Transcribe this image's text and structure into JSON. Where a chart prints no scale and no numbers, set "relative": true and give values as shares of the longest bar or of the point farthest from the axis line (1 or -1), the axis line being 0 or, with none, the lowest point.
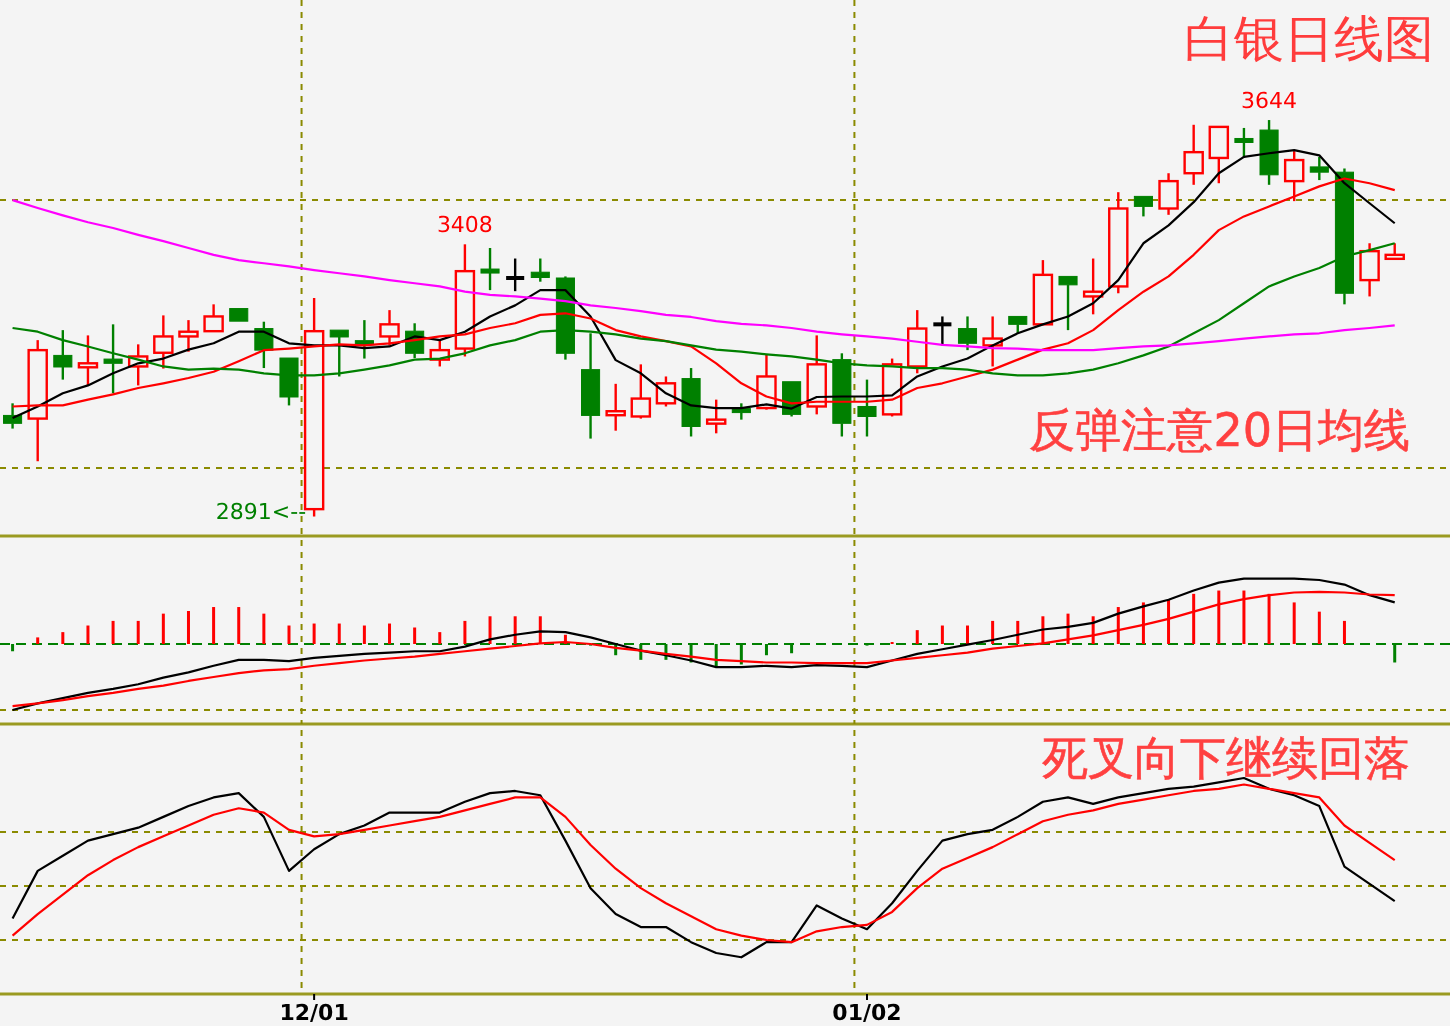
{
  "chart_data": [
    {
      "type": "candlestick",
      "title": "白银日线图",
      "tick_labels": false,
      "grid": true,
      "categories": [
        null,
        null,
        null,
        null,
        null,
        null,
        null,
        null,
        null,
        null,
        null,
        null,
        null,
        null,
        null,
        null,
        null,
        null,
        null,
        null,
        null,
        null,
        null,
        null,
        null,
        null,
        null,
        null,
        null,
        null,
        null,
        null,
        null,
        null,
        null,
        null,
        null,
        null,
        null,
        null,
        null,
        null,
        null,
        null,
        null,
        null,
        null,
        null,
        null,
        null,
        null,
        null,
        null,
        null,
        null,
        null
      ],
      "ylim": [
        2854,
        3872
      ],
      "yticks": [
        {
          "value": 3492,
          "label": null
        },
        {
          "value": 2983,
          "label": null
        }
      ],
      "ohlc": [
        [
          3083,
          3106,
          3058,
          3068
        ],
        [
          3077,
          3226,
          2996,
          3207
        ],
        [
          3197,
          3245,
          3151,
          3175
        ],
        [
          3180,
          3235,
          3140,
          3182
        ],
        [
          3190,
          3256,
          3125,
          3182
        ],
        [
          3176,
          3218,
          3140,
          3195
        ],
        [
          3202,
          3273,
          3172,
          3233
        ],
        [
          3233,
          3264,
          3204,
          3242
        ],
        [
          3243,
          3294,
          3243,
          3271
        ],
        [
          3286,
          3286,
          3262,
          3262
        ],
        [
          3248,
          3261,
          3173,
          3207
        ],
        [
          3192,
          3192,
          3102,
          3118
        ],
        [
          2905,
          3306,
          2891,
          3243
        ],
        [
          3245,
          3245,
          3157,
          3232
        ],
        [
          3225,
          3264,
          3191,
          3223
        ],
        [
          3233,
          3283,
          3216,
          3256
        ],
        [
          3243,
          3258,
          3192,
          3201
        ],
        [
          3189,
          3226,
          3176,
          3207
        ],
        [
          3210,
          3408,
          3195,
          3357
        ],
        [
          3361,
          3401,
          3321,
          3358
        ],
        [
          3344,
          3381,
          3319,
          3344
        ],
        [
          3355,
          3381,
          3337,
          3345
        ],
        [
          3344,
          3347,
          3189,
          3201
        ],
        [
          3170,
          3239,
          3039,
          3083
        ],
        [
          3087,
          3143,
          3054,
          3091
        ],
        [
          3081,
          3180,
          3077,
          3115
        ],
        [
          3106,
          3157,
          3100,
          3144
        ],
        [
          3153,
          3173,
          3043,
          3062
        ],
        [
          3072,
          3113,
          3049,
          3075
        ],
        [
          3096,
          3106,
          3075,
          3090
        ],
        [
          3097,
          3199,
          3094,
          3157
        ],
        [
          3147,
          3147,
          3081,
          3085
        ],
        [
          3100,
          3235,
          3085,
          3180
        ],
        [
          3189,
          3201,
          3043,
          3068
        ],
        [
          3100,
          3151,
          3043,
          3081
        ],
        [
          3085,
          3191,
          3081,
          3180
        ],
        [
          3176,
          3283,
          3163,
          3248
        ],
        [
          3256,
          3271,
          3216,
          3256
        ],
        [
          3248,
          3271,
          3207,
          3220
        ],
        [
          3216,
          3271,
          3176,
          3229
        ],
        [
          3271,
          3271,
          3239,
          3256
        ],
        [
          3256,
          3378,
          3256,
          3350
        ],
        [
          3347,
          3347,
          3245,
          3331
        ],
        [
          3309,
          3381,
          3275,
          3318
        ],
        [
          3328,
          3507,
          3315,
          3476
        ],
        [
          3499,
          3499,
          3461,
          3480
        ],
        [
          3476,
          3543,
          3464,
          3528
        ],
        [
          3543,
          3635,
          3521,
          3583
        ],
        [
          3572,
          3631,
          3524,
          3631
        ],
        [
          3609,
          3629,
          3572,
          3605
        ],
        [
          3625,
          3644,
          3521,
          3540
        ],
        [
          3528,
          3585,
          3490,
          3568
        ],
        [
          3555,
          3574,
          3530,
          3545
        ],
        [
          3545,
          3552,
          3294,
          3315
        ],
        [
          3340,
          3410,
          3309,
          3395
        ],
        [
          3381,
          3410,
          3381,
          3388
        ]
      ],
      "series": [
        {
          "type": "line",
          "color": "#000000",
          "values": [
            3078,
            3100,
            3125,
            3140,
            3163,
            3182,
            3191,
            3208,
            3220,
            3242,
            3242,
            3220,
            3216,
            3216,
            3211,
            3214,
            3233,
            3226,
            3242,
            3271,
            3292,
            3321,
            3321,
            3271,
            3188,
            3163,
            3125,
            3102,
            3097,
            3097,
            3104,
            3096,
            3118,
            3119,
            3119,
            3121,
            3157,
            3176,
            3191,
            3216,
            3239,
            3256,
            3271,
            3296,
            3340,
            3410,
            3444,
            3488,
            3543,
            3574,
            3581,
            3587,
            3577,
            3524,
            3486,
            3448
          ]
        },
        {
          "type": "line",
          "color": "#ff0000",
          "values": [
            3100,
            3102,
            3102,
            3113,
            3123,
            3135,
            3144,
            3154,
            3166,
            3186,
            3207,
            3210,
            3214,
            3218,
            3216,
            3220,
            3226,
            3233,
            3237,
            3249,
            3258,
            3274,
            3277,
            3267,
            3245,
            3233,
            3224,
            3214,
            3182,
            3144,
            3119,
            3106,
            3109,
            3109,
            3109,
            3113,
            3135,
            3144,
            3157,
            3170,
            3189,
            3208,
            3220,
            3245,
            3283,
            3318,
            3347,
            3388,
            3435,
            3461,
            3480,
            3499,
            3518,
            3533,
            3524,
            3511
          ]
        },
        {
          "type": "line",
          "color": "#008000",
          "values": [
            3249,
            3242,
            3226,
            3214,
            3201,
            3189,
            3176,
            3170,
            3172,
            3170,
            3163,
            3159,
            3159,
            3163,
            3170,
            3178,
            3189,
            3191,
            3201,
            3216,
            3226,
            3242,
            3245,
            3242,
            3237,
            3229,
            3224,
            3216,
            3208,
            3204,
            3199,
            3195,
            3189,
            3182,
            3178,
            3176,
            3173,
            3173,
            3170,
            3163,
            3159,
            3159,
            3163,
            3170,
            3182,
            3197,
            3214,
            3239,
            3264,
            3296,
            3328,
            3347,
            3363,
            3385,
            3397,
            3410
          ]
        },
        {
          "type": "line",
          "color": "#ff00ff",
          "values": [
            3492,
            3477,
            3463,
            3450,
            3439,
            3426,
            3414,
            3401,
            3388,
            3378,
            3372,
            3366,
            3359,
            3353,
            3347,
            3340,
            3334,
            3328,
            3318,
            3312,
            3309,
            3305,
            3300,
            3292,
            3287,
            3281,
            3274,
            3270,
            3262,
            3257,
            3254,
            3249,
            3242,
            3237,
            3233,
            3229,
            3223,
            3217,
            3214,
            3211,
            3210,
            3207,
            3207,
            3207,
            3211,
            3214,
            3216,
            3220,
            3224,
            3229,
            3233,
            3237,
            3239,
            3245,
            3249,
            3254
          ]
        }
      ],
      "annotations": [
        {
          "text": "3408",
          "y": 3408
        },
        {
          "text": "3644",
          "y": 3644
        },
        "2891<--",
        "反弹注意20日均线"
      ]
    },
    {
      "type": "bar",
      "relative": true,
      "tick_labels": false,
      "grid": true,
      "ref_lines": [
        {
          "axis": "y",
          "value": 0,
          "color": "#008000",
          "line_style": "dashed"
        }
      ],
      "categories": [
        null,
        null,
        null,
        null,
        null,
        null,
        null,
        null,
        null,
        null,
        null,
        null,
        null,
        null,
        null,
        null,
        null,
        null,
        null,
        null,
        null,
        null,
        null,
        null,
        null,
        null,
        null,
        null,
        null,
        null,
        null,
        null,
        null,
        null,
        null,
        null,
        null,
        null,
        null,
        null,
        null,
        null,
        null,
        null,
        null,
        null,
        null,
        null,
        null,
        null,
        null,
        null,
        null,
        null,
        null,
        null
      ],
      "series": [
        {
          "type": "bar",
          "values": [
            -0.11,
            0.1,
            0.18,
            0.28,
            0.35,
            0.35,
            0.46,
            0.5,
            0.56,
            0.56,
            0.46,
            0.28,
            0.31,
            0.31,
            0.28,
            0.31,
            0.25,
            0.18,
            0.35,
            0.42,
            0.42,
            0.42,
            0.14,
            0,
            -0.17,
            -0.24,
            -0.24,
            -0.28,
            -0.35,
            -0.31,
            -0.17,
            -0.14,
            null,
            null,
            0,
            0.03,
            0.21,
            0.28,
            0.28,
            0.35,
            0.35,
            0.42,
            0.46,
            0.42,
            0.56,
            0.63,
            0.67,
            0.76,
            0.81,
            0.81,
            0.76,
            0.63,
            0.49,
            0.35,
            null,
            -0.28
          ],
          "colors": [
            "#008000",
            "#ff0000",
            "#ff0000",
            "#ff0000",
            "#ff0000",
            "#ff0000",
            "#ff0000",
            "#ff0000",
            "#ff0000",
            "#ff0000",
            "#ff0000",
            "#ff0000",
            "#ff0000",
            "#ff0000",
            "#ff0000",
            "#ff0000",
            "#ff0000",
            "#ff0000",
            "#ff0000",
            "#ff0000",
            "#ff0000",
            "#ff0000",
            "#ff0000",
            "#008000",
            "#008000",
            "#008000",
            "#008000",
            "#008000",
            "#008000",
            "#008000",
            "#008000",
            "#008000",
            null,
            null,
            "#008000",
            "#ff0000",
            "#ff0000",
            "#ff0000",
            "#ff0000",
            "#ff0000",
            "#ff0000",
            "#ff0000",
            "#ff0000",
            "#ff0000",
            "#ff0000",
            "#ff0000",
            "#ff0000",
            "#ff0000",
            "#ff0000",
            "#ff0000",
            "#ff0000",
            "#ff0000",
            "#ff0000",
            "#ff0000",
            null,
            "#008000"
          ]
        },
        {
          "type": "line",
          "color": "#000000",
          "values": [
            -1,
            -0.9,
            -0.82,
            -0.74,
            -0.68,
            -0.61,
            -0.51,
            -0.43,
            -0.33,
            -0.24,
            -0.24,
            -0.26,
            -0.21,
            -0.18,
            -0.15,
            -0.13,
            -0.11,
            -0.11,
            -0.04,
            0.07,
            0.14,
            0.19,
            0.18,
            0.1,
            0,
            -0.1,
            -0.17,
            -0.25,
            -0.35,
            -0.35,
            -0.33,
            -0.35,
            -0.32,
            -0.33,
            -0.35,
            -0.25,
            -0.15,
            -0.08,
            -0.01,
            0.06,
            0.14,
            0.22,
            0.26,
            0.32,
            0.46,
            0.57,
            0.67,
            0.81,
            0.93,
            0.99,
            0.99,
            0.99,
            0.97,
            0.9,
            0.74,
            0.63
          ]
        },
        {
          "type": "line",
          "color": "#ff0000",
          "values": [
            -0.94,
            -0.9,
            -0.85,
            -0.79,
            -0.74,
            -0.68,
            -0.63,
            -0.56,
            -0.5,
            -0.44,
            -0.4,
            -0.38,
            -0.33,
            -0.29,
            -0.25,
            -0.22,
            -0.19,
            -0.15,
            -0.11,
            -0.07,
            -0.03,
            0.01,
            0.03,
            0,
            -0.06,
            -0.1,
            -0.15,
            -0.19,
            -0.24,
            -0.26,
            -0.28,
            -0.28,
            -0.29,
            -0.29,
            -0.29,
            -0.25,
            -0.21,
            -0.17,
            -0.13,
            -0.07,
            -0.03,
            0.01,
            0.07,
            0.13,
            0.21,
            0.29,
            0.38,
            0.49,
            0.6,
            0.68,
            0.74,
            0.78,
            0.79,
            0.78,
            0.75,
            0.74
          ]
        }
      ]
    },
    {
      "type": "line",
      "relative": true,
      "tick_labels": "x",
      "grid": true,
      "categories": [
        null,
        null,
        null,
        null,
        null,
        null,
        null,
        null,
        null,
        null,
        null,
        null,
        "12/01",
        null,
        null,
        null,
        null,
        null,
        null,
        null,
        null,
        null,
        null,
        null,
        null,
        null,
        null,
        null,
        null,
        null,
        null,
        null,
        null,
        null,
        "01/02",
        null,
        null,
        null,
        null,
        null,
        null,
        null,
        null,
        null,
        null,
        null,
        null,
        null,
        null,
        null,
        null,
        null,
        null,
        null,
        null,
        null
      ],
      "series": [
        {
          "color": "#000000",
          "values": [
            0.35,
            0.57,
            0.64,
            0.71,
            0.74,
            0.77,
            0.82,
            0.87,
            0.91,
            0.93,
            0.82,
            0.57,
            0.67,
            0.74,
            0.78,
            0.84,
            0.84,
            0.84,
            0.89,
            0.93,
            0.94,
            0.92,
            0.71,
            0.49,
            0.37,
            0.31,
            0.31,
            0.24,
            0.19,
            0.17,
            0.24,
            0.24,
            0.41,
            0.35,
            0.3,
            0.42,
            0.57,
            0.71,
            0.74,
            0.76,
            0.82,
            0.89,
            0.91,
            0.88,
            0.91,
            0.93,
            0.95,
            0.96,
            0.98,
            1,
            0.95,
            0.92,
            0.87,
            0.59,
            0.51,
            0.43
          ]
        },
        {
          "color": "#ff0000",
          "values": [
            0.27,
            0.37,
            0.46,
            0.55,
            0.62,
            0.68,
            0.73,
            0.78,
            0.83,
            0.86,
            0.84,
            0.76,
            0.73,
            0.74,
            0.76,
            0.78,
            0.8,
            0.82,
            0.85,
            0.88,
            0.91,
            0.91,
            0.82,
            0.69,
            0.58,
            0.49,
            0.42,
            0.36,
            0.3,
            0.27,
            0.25,
            0.24,
            0.29,
            0.31,
            0.32,
            0.38,
            0.49,
            0.58,
            0.63,
            0.68,
            0.74,
            0.8,
            0.83,
            0.85,
            0.88,
            0.9,
            0.92,
            0.94,
            0.95,
            0.97,
            0.95,
            0.93,
            0.91,
            0.78,
            0.7,
            0.62
          ]
        }
      ],
      "annotations": [
        "死叉向下继续回落"
      ]
    }
  ]
}
